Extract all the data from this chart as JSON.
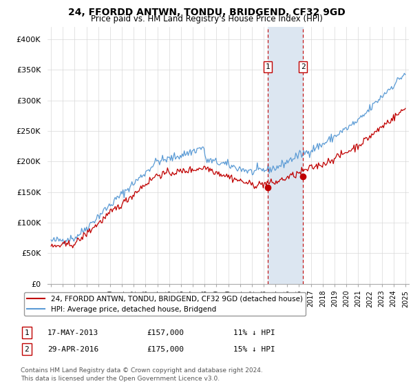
{
  "title": "24, FFORDD ANTWN, TONDU, BRIDGEND, CF32 9GD",
  "subtitle": "Price paid vs. HM Land Registry's House Price Index (HPI)",
  "ylim": [
    0,
    420000
  ],
  "yticks": [
    0,
    50000,
    100000,
    150000,
    200000,
    250000,
    300000,
    350000,
    400000
  ],
  "ytick_labels": [
    "£0",
    "£50K",
    "£100K",
    "£150K",
    "£200K",
    "£250K",
    "£300K",
    "£350K",
    "£400K"
  ],
  "sale1_date": 2013.37,
  "sale1_price": 157000,
  "sale1_label": "1",
  "sale2_date": 2016.33,
  "sale2_price": 175000,
  "sale2_label": "2",
  "hpi_color": "#5b9bd5",
  "price_color": "#c00000",
  "highlight_color": "#dce6f1",
  "legend_label1": "24, FFORDD ANTWN, TONDU, BRIDGEND, CF32 9GD (detached house)",
  "legend_label2": "HPI: Average price, detached house, Bridgend",
  "transaction1": "17-MAY-2013",
  "transaction1_price": "£157,000",
  "transaction1_pct": "11% ↓ HPI",
  "transaction2": "29-APR-2016",
  "transaction2_price": "£175,000",
  "transaction2_pct": "15% ↓ HPI",
  "footnote1": "Contains HM Land Registry data © Crown copyright and database right 2024.",
  "footnote2": "This data is licensed under the Open Government Licence v3.0."
}
